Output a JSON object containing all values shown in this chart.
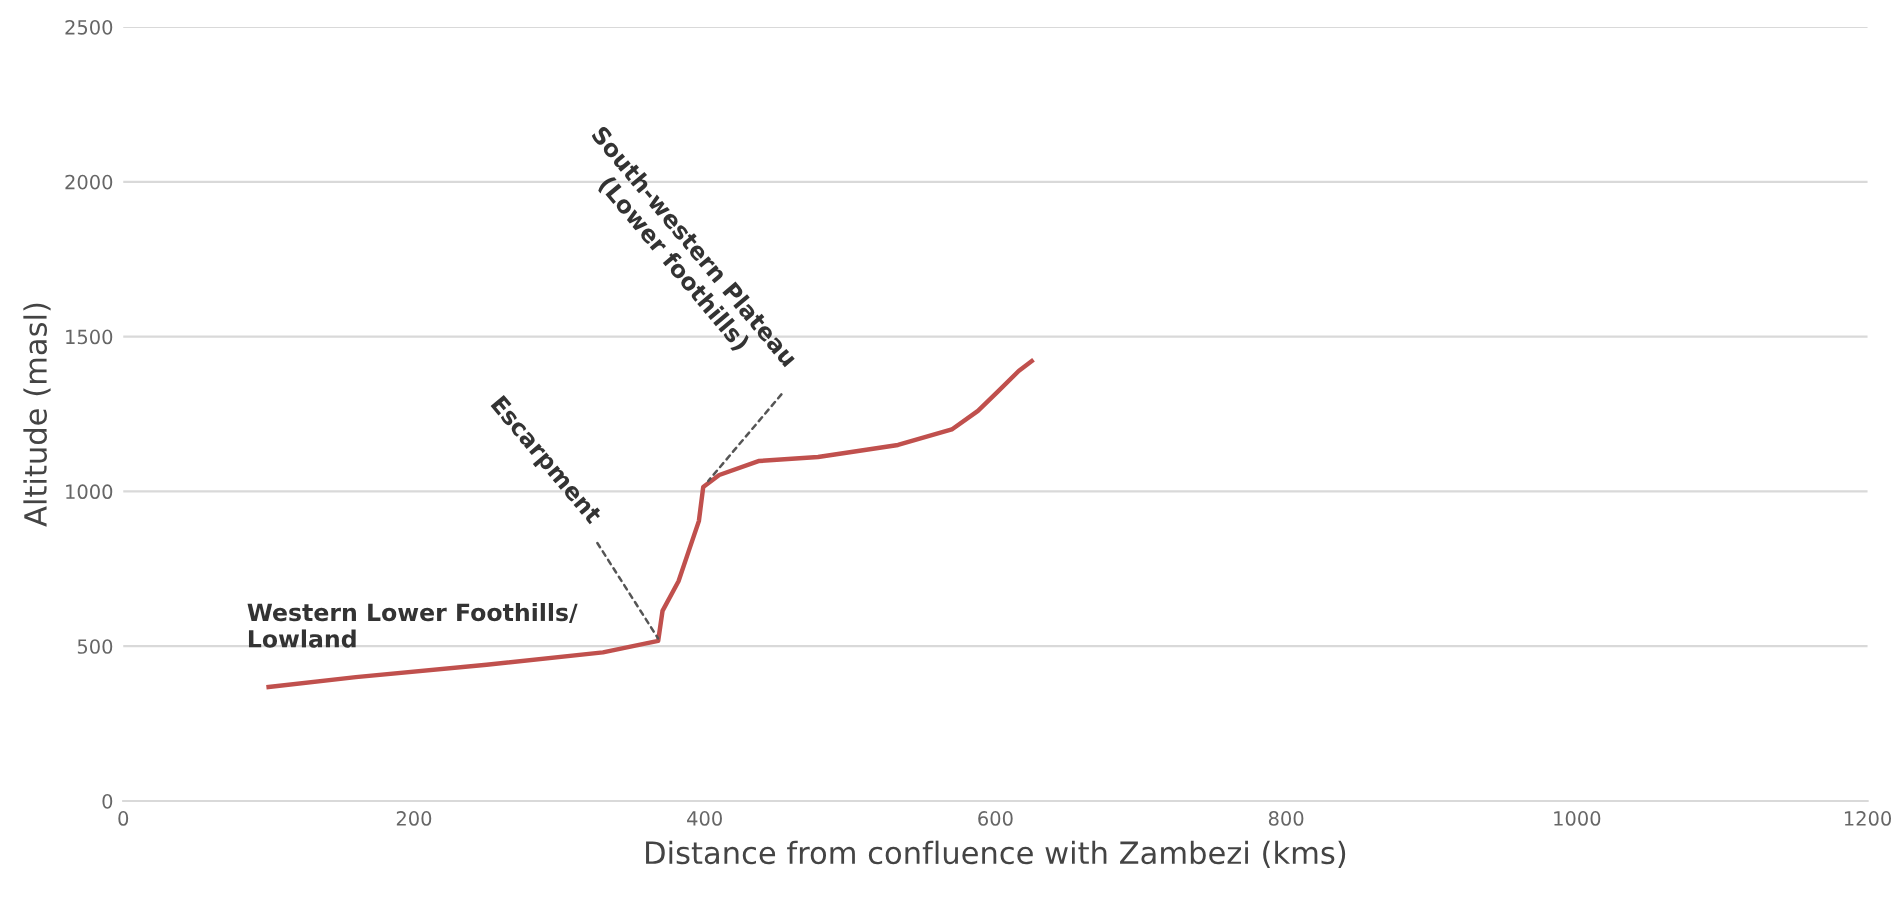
{
  "chart_data": {
    "type": "line",
    "xlabel": "Distance from confluence with Zambezi (kms)",
    "ylabel": "Altitude (masl)",
    "x": [
      100,
      160,
      250,
      330,
      368,
      371,
      382,
      389,
      396,
      399,
      410,
      437,
      478,
      533,
      570,
      588,
      602,
      616,
      625
    ],
    "series": [
      {
        "color": "#c0504d",
        "values": [
          368,
          400,
          440,
          480,
          517,
          614,
          710,
          807,
          904,
          1014,
          1053,
          1098,
          1111,
          1150,
          1200,
          1260,
          1324,
          1389,
          1421
        ]
      }
    ],
    "xlim": [
      0,
      1200
    ],
    "xticks": [
      0,
      200,
      400,
      600,
      800,
      1000,
      1200
    ],
    "ylim": [
      0,
      2500
    ],
    "yticks": [
      0,
      500,
      1000,
      1500,
      2000,
      2500
    ],
    "grid": "y",
    "legend": false,
    "marker": "none",
    "line_style": "solid",
    "annotations": [
      "Western Lower Foothills/\nLowland",
      {
        "text": "Escarpment",
        "x": 370,
        "y": 510
      },
      {
        "text": "South-western Plateau\n(Lower foothills)",
        "x": 400,
        "y": 1020
      }
    ]
  }
}
